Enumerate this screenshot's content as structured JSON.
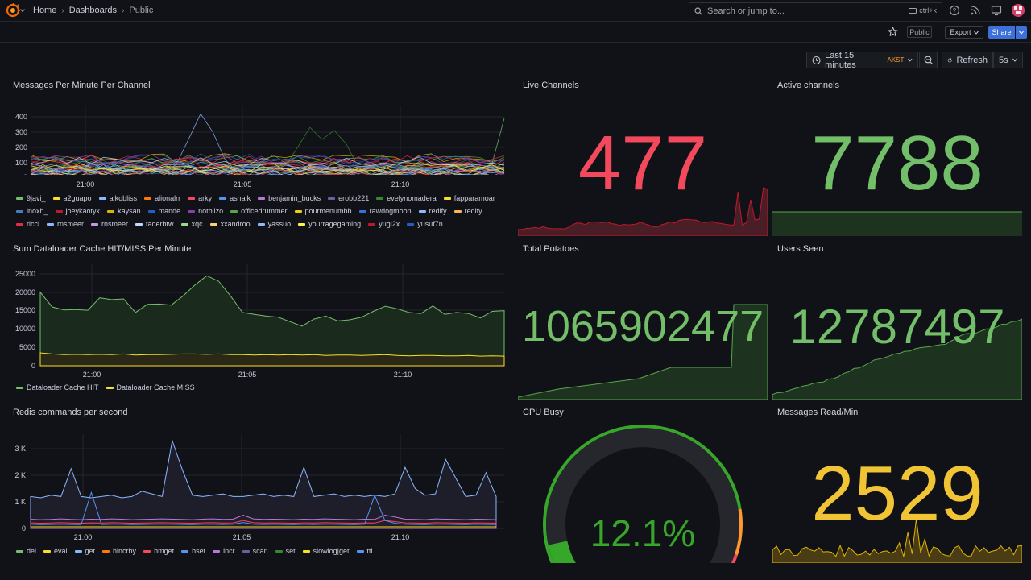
{
  "breadcrumb": {
    "home": "Home",
    "dashboards": "Dashboards",
    "current": "Public"
  },
  "search": {
    "placeholder": "Search or jump to...",
    "shortcut": "ctrl+k"
  },
  "toolbar": {
    "public_badge": "Public",
    "export_label": "Export",
    "share_label": "Share"
  },
  "time": {
    "range_label": "Last 15 minutes",
    "timezone": "AKST",
    "refresh_label": "Refresh",
    "interval": "5s"
  },
  "colors": {
    "red": "#f2495c",
    "green": "#73bf69",
    "yellow": "#fade2a",
    "blue": "#5794f2",
    "orange": "#ff9830",
    "background": "#111217"
  },
  "panels": {
    "messages_per_minute": {
      "title": "Messages Per Minute Per Channel",
      "y_ticks": [
        "400",
        "300",
        "200",
        "100",
        "0"
      ],
      "x_ticks": [
        "21:00",
        "21:05",
        "21:10"
      ],
      "legend": [
        {
          "name": "9javi_",
          "color": "#73bf69"
        },
        {
          "name": "a2guapo",
          "color": "#fade2a"
        },
        {
          "name": "alkobliss",
          "color": "#8ab8ff"
        },
        {
          "name": "alionalrr",
          "color": "#ff780a"
        },
        {
          "name": "arky",
          "color": "#f2495c"
        },
        {
          "name": "ashalk",
          "color": "#5794f2"
        },
        {
          "name": "benjamin_bucks",
          "color": "#b877d9"
        },
        {
          "name": "erobb221",
          "color": "#705da0"
        },
        {
          "name": "evelynomadera",
          "color": "#37872d"
        },
        {
          "name": "fapparamoar",
          "color": "#fade2a"
        },
        {
          "name": "inoxh_",
          "color": "#447ebc"
        },
        {
          "name": "joeykaotyk",
          "color": "#c4162a"
        },
        {
          "name": "kaysan",
          "color": "#e0b400"
        },
        {
          "name": "mande",
          "color": "#1f60c4"
        },
        {
          "name": "notblizo",
          "color": "#8f3bb8"
        },
        {
          "name": "officedrummer",
          "color": "#56a64b"
        },
        {
          "name": "pourmenumbb",
          "color": "#f2cc0c"
        },
        {
          "name": "rawdogmoon",
          "color": "#3274d9"
        },
        {
          "name": "redify",
          "color": "#8ab8ff"
        },
        {
          "name": "redify",
          "color": "#ffb357"
        },
        {
          "name": "ricci",
          "color": "#e02f44"
        },
        {
          "name": "rnsmeer",
          "color": "#8ab8ff"
        },
        {
          "name": "rnsmeer",
          "color": "#ca95e5"
        },
        {
          "name": "taderbtw",
          "color": "#c0d8ff"
        },
        {
          "name": "xqc",
          "color": "#96d98d"
        },
        {
          "name": "xxandroo",
          "color": "#ffcb7d"
        },
        {
          "name": "yassuo",
          "color": "#8ab8ff"
        },
        {
          "name": "yourragegaming",
          "color": "#ffee52"
        },
        {
          "name": "yugi2x",
          "color": "#c4162a"
        },
        {
          "name": "yusuf7n",
          "color": "#1f60c4"
        }
      ]
    },
    "live_channels": {
      "title": "Live Channels",
      "value": "477"
    },
    "active_channels": {
      "title": "Active channels",
      "value": "7788"
    },
    "dataloader": {
      "title": "Sum Dataloader Cache HIT/MISS Per Minute",
      "y_ticks": [
        "25000",
        "20000",
        "15000",
        "10000",
        "5000",
        "0"
      ],
      "x_ticks": [
        "21:00",
        "21:05",
        "21:10"
      ],
      "legend": [
        {
          "name": "Dataloader Cache HIT",
          "color": "#73bf69"
        },
        {
          "name": "Dataloader Cache MISS",
          "color": "#fade2a"
        }
      ]
    },
    "total_potatoes": {
      "title": "Total Potatoes",
      "value": "1065902477"
    },
    "users_seen": {
      "title": "Users Seen",
      "value": "12787497"
    },
    "redis": {
      "title": "Redis commands per second",
      "y_ticks": [
        "3 K",
        "2 K",
        "1 K",
        "0"
      ],
      "x_ticks": [
        "21:00",
        "21:05",
        "21:10"
      ],
      "legend": [
        {
          "name": "del",
          "color": "#73bf69"
        },
        {
          "name": "eval",
          "color": "#fade2a"
        },
        {
          "name": "get",
          "color": "#8ab8ff"
        },
        {
          "name": "hincrby",
          "color": "#ff780a"
        },
        {
          "name": "hmget",
          "color": "#f2495c"
        },
        {
          "name": "hset",
          "color": "#5794f2"
        },
        {
          "name": "incr",
          "color": "#b877d9"
        },
        {
          "name": "scan",
          "color": "#705da0"
        },
        {
          "name": "set",
          "color": "#37872d"
        },
        {
          "name": "slowlog|get",
          "color": "#fade2a"
        },
        {
          "name": "ttl",
          "color": "#5794f2"
        }
      ]
    },
    "cpu_busy": {
      "title": "CPU Busy",
      "value": "12.1%",
      "percent": 12.1
    },
    "messages_read": {
      "title": "Messages Read/Min",
      "value": "2529"
    }
  }
}
